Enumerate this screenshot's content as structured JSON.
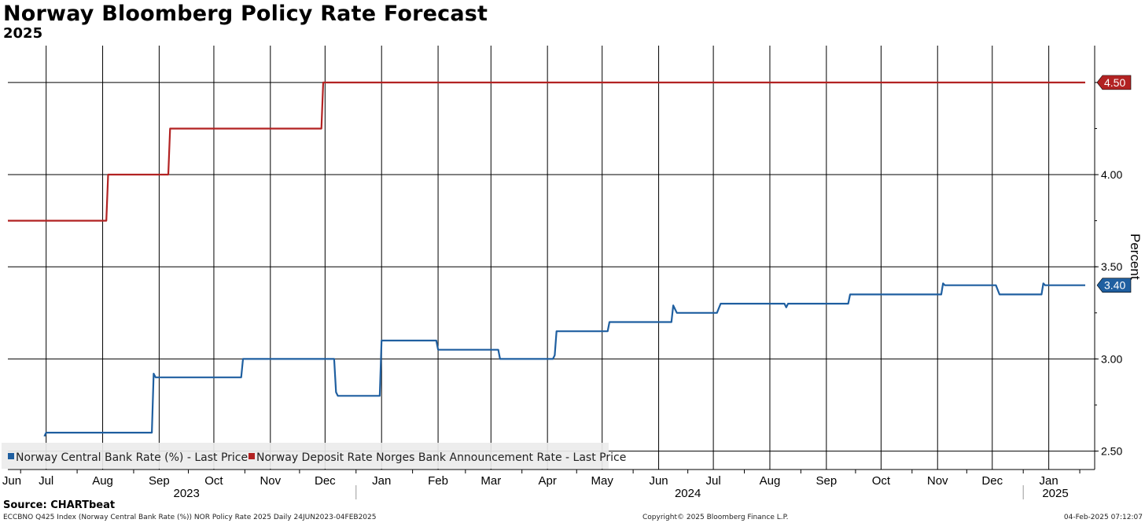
{
  "header": {
    "title": "Norway Bloomberg Policy Rate Forecast",
    "subtitle": "2025"
  },
  "footer": {
    "source": "Source: CHARTbeat",
    "index_info": "ECCBNO Q425 Index (Norway Central Bank Rate (%)) NOR Policy Rate 2025  Daily 24JUN2023-04FEB2025",
    "copyright": "Copyright© 2025 Bloomberg Finance L.P.",
    "timestamp": "04-Feb-2025 07:12:07"
  },
  "chart_data": {
    "type": "line",
    "title": "Norway Bloomberg Policy Rate Forecast",
    "subtitle": "2025",
    "ylabel": "Percent",
    "ylim": [
      2.4,
      4.7
    ],
    "yticks": [
      "2.50",
      "3.00",
      "3.50",
      "4.00"
    ],
    "grid": true,
    "x_start": "2023-06-24",
    "x_end": "2025-02-04",
    "month_ticks": [
      {
        "date": "2023-06-15",
        "label": "Jun"
      },
      {
        "date": "2023-07-15",
        "label": "Jul"
      },
      {
        "date": "2023-08-15",
        "label": "Aug"
      },
      {
        "date": "2023-09-15",
        "label": "Sep"
      },
      {
        "date": "2023-10-15",
        "label": "Oct"
      },
      {
        "date": "2023-11-15",
        "label": "Nov"
      },
      {
        "date": "2023-12-15",
        "label": "Dec"
      },
      {
        "date": "2024-01-15",
        "label": "Jan"
      },
      {
        "date": "2024-02-15",
        "label": "Feb"
      },
      {
        "date": "2024-03-15",
        "label": "Mar"
      },
      {
        "date": "2024-04-15",
        "label": "Apr"
      },
      {
        "date": "2024-05-15",
        "label": "May"
      },
      {
        "date": "2024-06-15",
        "label": "Jun"
      },
      {
        "date": "2024-07-15",
        "label": "Jul"
      },
      {
        "date": "2024-08-15",
        "label": "Aug"
      },
      {
        "date": "2024-09-15",
        "label": "Sep"
      },
      {
        "date": "2024-10-15",
        "label": "Oct"
      },
      {
        "date": "2024-11-15",
        "label": "Nov"
      },
      {
        "date": "2024-12-15",
        "label": "Dec"
      },
      {
        "date": "2025-01-15",
        "label": "Jan"
      }
    ],
    "year_labels": [
      {
        "date": "2023-09-30",
        "label": "2023"
      },
      {
        "date": "2024-07-01",
        "label": "2024"
      },
      {
        "date": "2025-01-15",
        "label": "2025"
      }
    ],
    "year_separators": [
      "2024-01-01",
      "2025-01-01"
    ],
    "legend_position": "bottom-left",
    "series": [
      {
        "name": "Norway Central Bank Rate (%) - Last Price",
        "color": "#1f5fa0",
        "last_label": "3.40",
        "points": [
          [
            "2023-07-14",
            2.58
          ],
          [
            "2023-07-15",
            2.6
          ],
          [
            "2023-09-11",
            2.6
          ],
          [
            "2023-09-12",
            2.92
          ],
          [
            "2023-09-13",
            2.9
          ],
          [
            "2023-10-30",
            2.9
          ],
          [
            "2023-10-31",
            3.0
          ],
          [
            "2023-12-20",
            3.0
          ],
          [
            "2023-12-21",
            2.82
          ],
          [
            "2023-12-22",
            2.8
          ],
          [
            "2024-01-14",
            2.8
          ],
          [
            "2024-01-15",
            3.1
          ],
          [
            "2024-02-14",
            3.1
          ],
          [
            "2024-02-15",
            3.05
          ],
          [
            "2024-03-19",
            3.05
          ],
          [
            "2024-03-20",
            3.0
          ],
          [
            "2024-04-18",
            3.0
          ],
          [
            "2024-04-19",
            3.02
          ],
          [
            "2024-04-20",
            3.15
          ],
          [
            "2024-05-18",
            3.15
          ],
          [
            "2024-05-19",
            3.2
          ],
          [
            "2024-06-22",
            3.2
          ],
          [
            "2024-06-23",
            3.29
          ],
          [
            "2024-06-25",
            3.25
          ],
          [
            "2024-07-17",
            3.25
          ],
          [
            "2024-07-19",
            3.3
          ],
          [
            "2024-08-23",
            3.3
          ],
          [
            "2024-08-24",
            3.28
          ],
          [
            "2024-08-25",
            3.3
          ],
          [
            "2024-09-27",
            3.3
          ],
          [
            "2024-09-28",
            3.35
          ],
          [
            "2024-11-17",
            3.35
          ],
          [
            "2024-11-18",
            3.41
          ],
          [
            "2024-11-19",
            3.4
          ],
          [
            "2024-12-17",
            3.4
          ],
          [
            "2024-12-19",
            3.35
          ],
          [
            "2025-01-11",
            3.35
          ],
          [
            "2025-01-12",
            3.41
          ],
          [
            "2025-01-13",
            3.4
          ],
          [
            "2025-02-04",
            3.4
          ]
        ]
      },
      {
        "name": "Norway Deposit Rate Norges Bank Announcement Rate - Last Price",
        "color": "#b22222",
        "last_label": "4.50",
        "points": [
          [
            "2023-06-24",
            3.75
          ],
          [
            "2023-08-17",
            3.75
          ],
          [
            "2023-08-18",
            4.0
          ],
          [
            "2023-09-20",
            4.0
          ],
          [
            "2023-09-21",
            4.25
          ],
          [
            "2023-12-13",
            4.25
          ],
          [
            "2023-12-14",
            4.5
          ],
          [
            "2025-02-04",
            4.5
          ]
        ]
      }
    ]
  }
}
